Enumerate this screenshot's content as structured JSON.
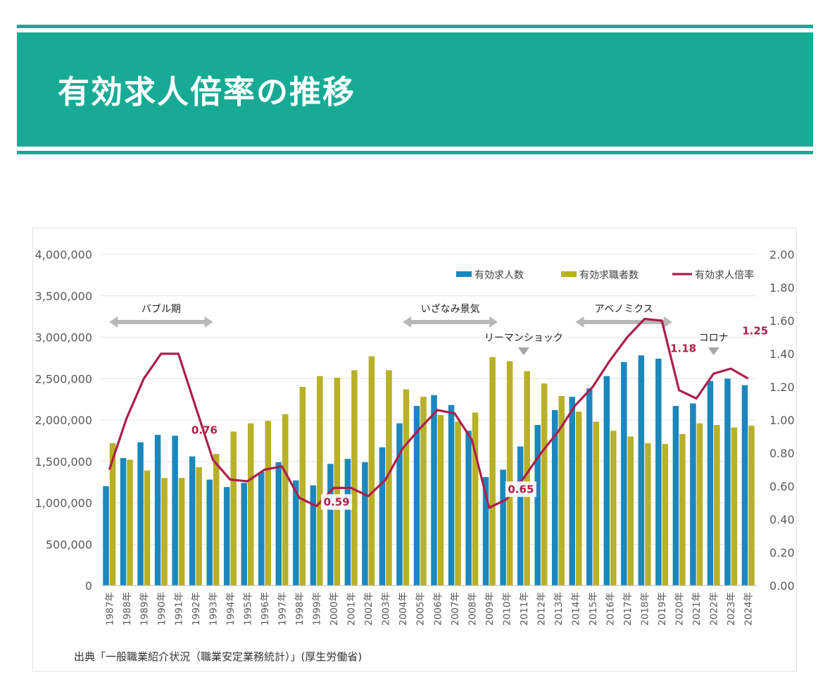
{
  "header": {
    "title": "有効求人倍率の推移"
  },
  "source": "出典「一般職業紹介状況（職業安定業務統計）」(厚生労働省)",
  "colors": {
    "accent": "#17ab96",
    "openings": "#1b87bd",
    "seekers": "#b8b027",
    "ratio": "#ad1f4a"
  },
  "chart_data": {
    "type": "bar",
    "categories": [
      "1987年",
      "1988年",
      "1989年",
      "1990年",
      "1991年",
      "1992年",
      "1993年",
      "1994年",
      "1995年",
      "1996年",
      "1997年",
      "1998年",
      "1999年",
      "2000年",
      "2001年",
      "2002年",
      "2003年",
      "2004年",
      "2005年",
      "2006年",
      "2007年",
      "2008年",
      "2009年",
      "2010年",
      "2011年",
      "2012年",
      "2013年",
      "2014年",
      "2015年",
      "2016年",
      "2017年",
      "2018年",
      "2019年",
      "2020年",
      "2021年",
      "2022年",
      "2023年",
      "2024年"
    ],
    "series": [
      {
        "name": "有効求人数",
        "type": "bar",
        "axis": "left",
        "values": [
          1200000,
          1540000,
          1730000,
          1820000,
          1810000,
          1560000,
          1280000,
          1190000,
          1240000,
          1370000,
          1490000,
          1270000,
          1210000,
          1470000,
          1530000,
          1490000,
          1670000,
          1960000,
          2170000,
          2300000,
          2180000,
          1870000,
          1310000,
          1400000,
          1680000,
          1940000,
          2120000,
          2280000,
          2380000,
          2530000,
          2700000,
          2780000,
          2740000,
          2170000,
          2200000,
          2470000,
          2500000,
          2420000
        ]
      },
      {
        "name": "有効求職者数",
        "type": "bar",
        "axis": "left",
        "values": [
          1720000,
          1520000,
          1390000,
          1300000,
          1300000,
          1430000,
          1590000,
          1860000,
          1960000,
          1990000,
          2070000,
          2400000,
          2530000,
          2510000,
          2600000,
          2770000,
          2600000,
          2370000,
          2280000,
          2060000,
          1980000,
          2090000,
          2760000,
          2710000,
          2590000,
          2440000,
          2290000,
          2100000,
          1980000,
          1870000,
          1800000,
          1720000,
          1710000,
          1830000,
          1960000,
          1940000,
          1910000,
          1930000
        ]
      },
      {
        "name": "有効求人倍率",
        "type": "line",
        "axis": "right",
        "values": [
          0.7,
          1.01,
          1.25,
          1.4,
          1.4,
          1.08,
          0.76,
          0.64,
          0.63,
          0.7,
          0.72,
          0.53,
          0.48,
          0.59,
          0.59,
          0.54,
          0.64,
          0.83,
          0.95,
          1.06,
          1.04,
          0.88,
          0.47,
          0.52,
          0.65,
          0.8,
          0.93,
          1.09,
          1.2,
          1.36,
          1.5,
          1.61,
          1.6,
          1.18,
          1.13,
          1.28,
          1.31,
          1.25
        ]
      }
    ],
    "y_left": {
      "min": 0,
      "max": 4000000,
      "ticks": [
        "0",
        "500,000",
        "1,000,000",
        "1,500,000",
        "2,000,000",
        "2,500,000",
        "3,000,000",
        "3,500,000",
        "4,000,000"
      ]
    },
    "y_right": {
      "min": 0,
      "max": 2.0,
      "ticks": [
        "0.00",
        "0.20",
        "0.40",
        "0.60",
        "0.80",
        "1.00",
        "1.20",
        "1.40",
        "1.60",
        "1.80",
        "2.00"
      ]
    },
    "legend": {
      "placement": "top-right"
    },
    "data_labels": [
      {
        "index": 6,
        "text": "0.76"
      },
      {
        "index": 13,
        "text": "0.59"
      },
      {
        "index": 24,
        "text": "0.65"
      },
      {
        "index": 33,
        "text": "1.18"
      },
      {
        "index": 37,
        "text": "1.25"
      }
    ],
    "periods": [
      {
        "label": "バブル期",
        "start": 0,
        "end": 6
      },
      {
        "label": "いざなみ景気",
        "start": 17,
        "end": 22.5
      },
      {
        "label": "アベノミクス",
        "start": 27,
        "end": 32.6
      }
    ],
    "events": [
      {
        "label": "リーマンショック",
        "index": 24
      },
      {
        "label": "コロナ",
        "index": 35
      }
    ]
  }
}
